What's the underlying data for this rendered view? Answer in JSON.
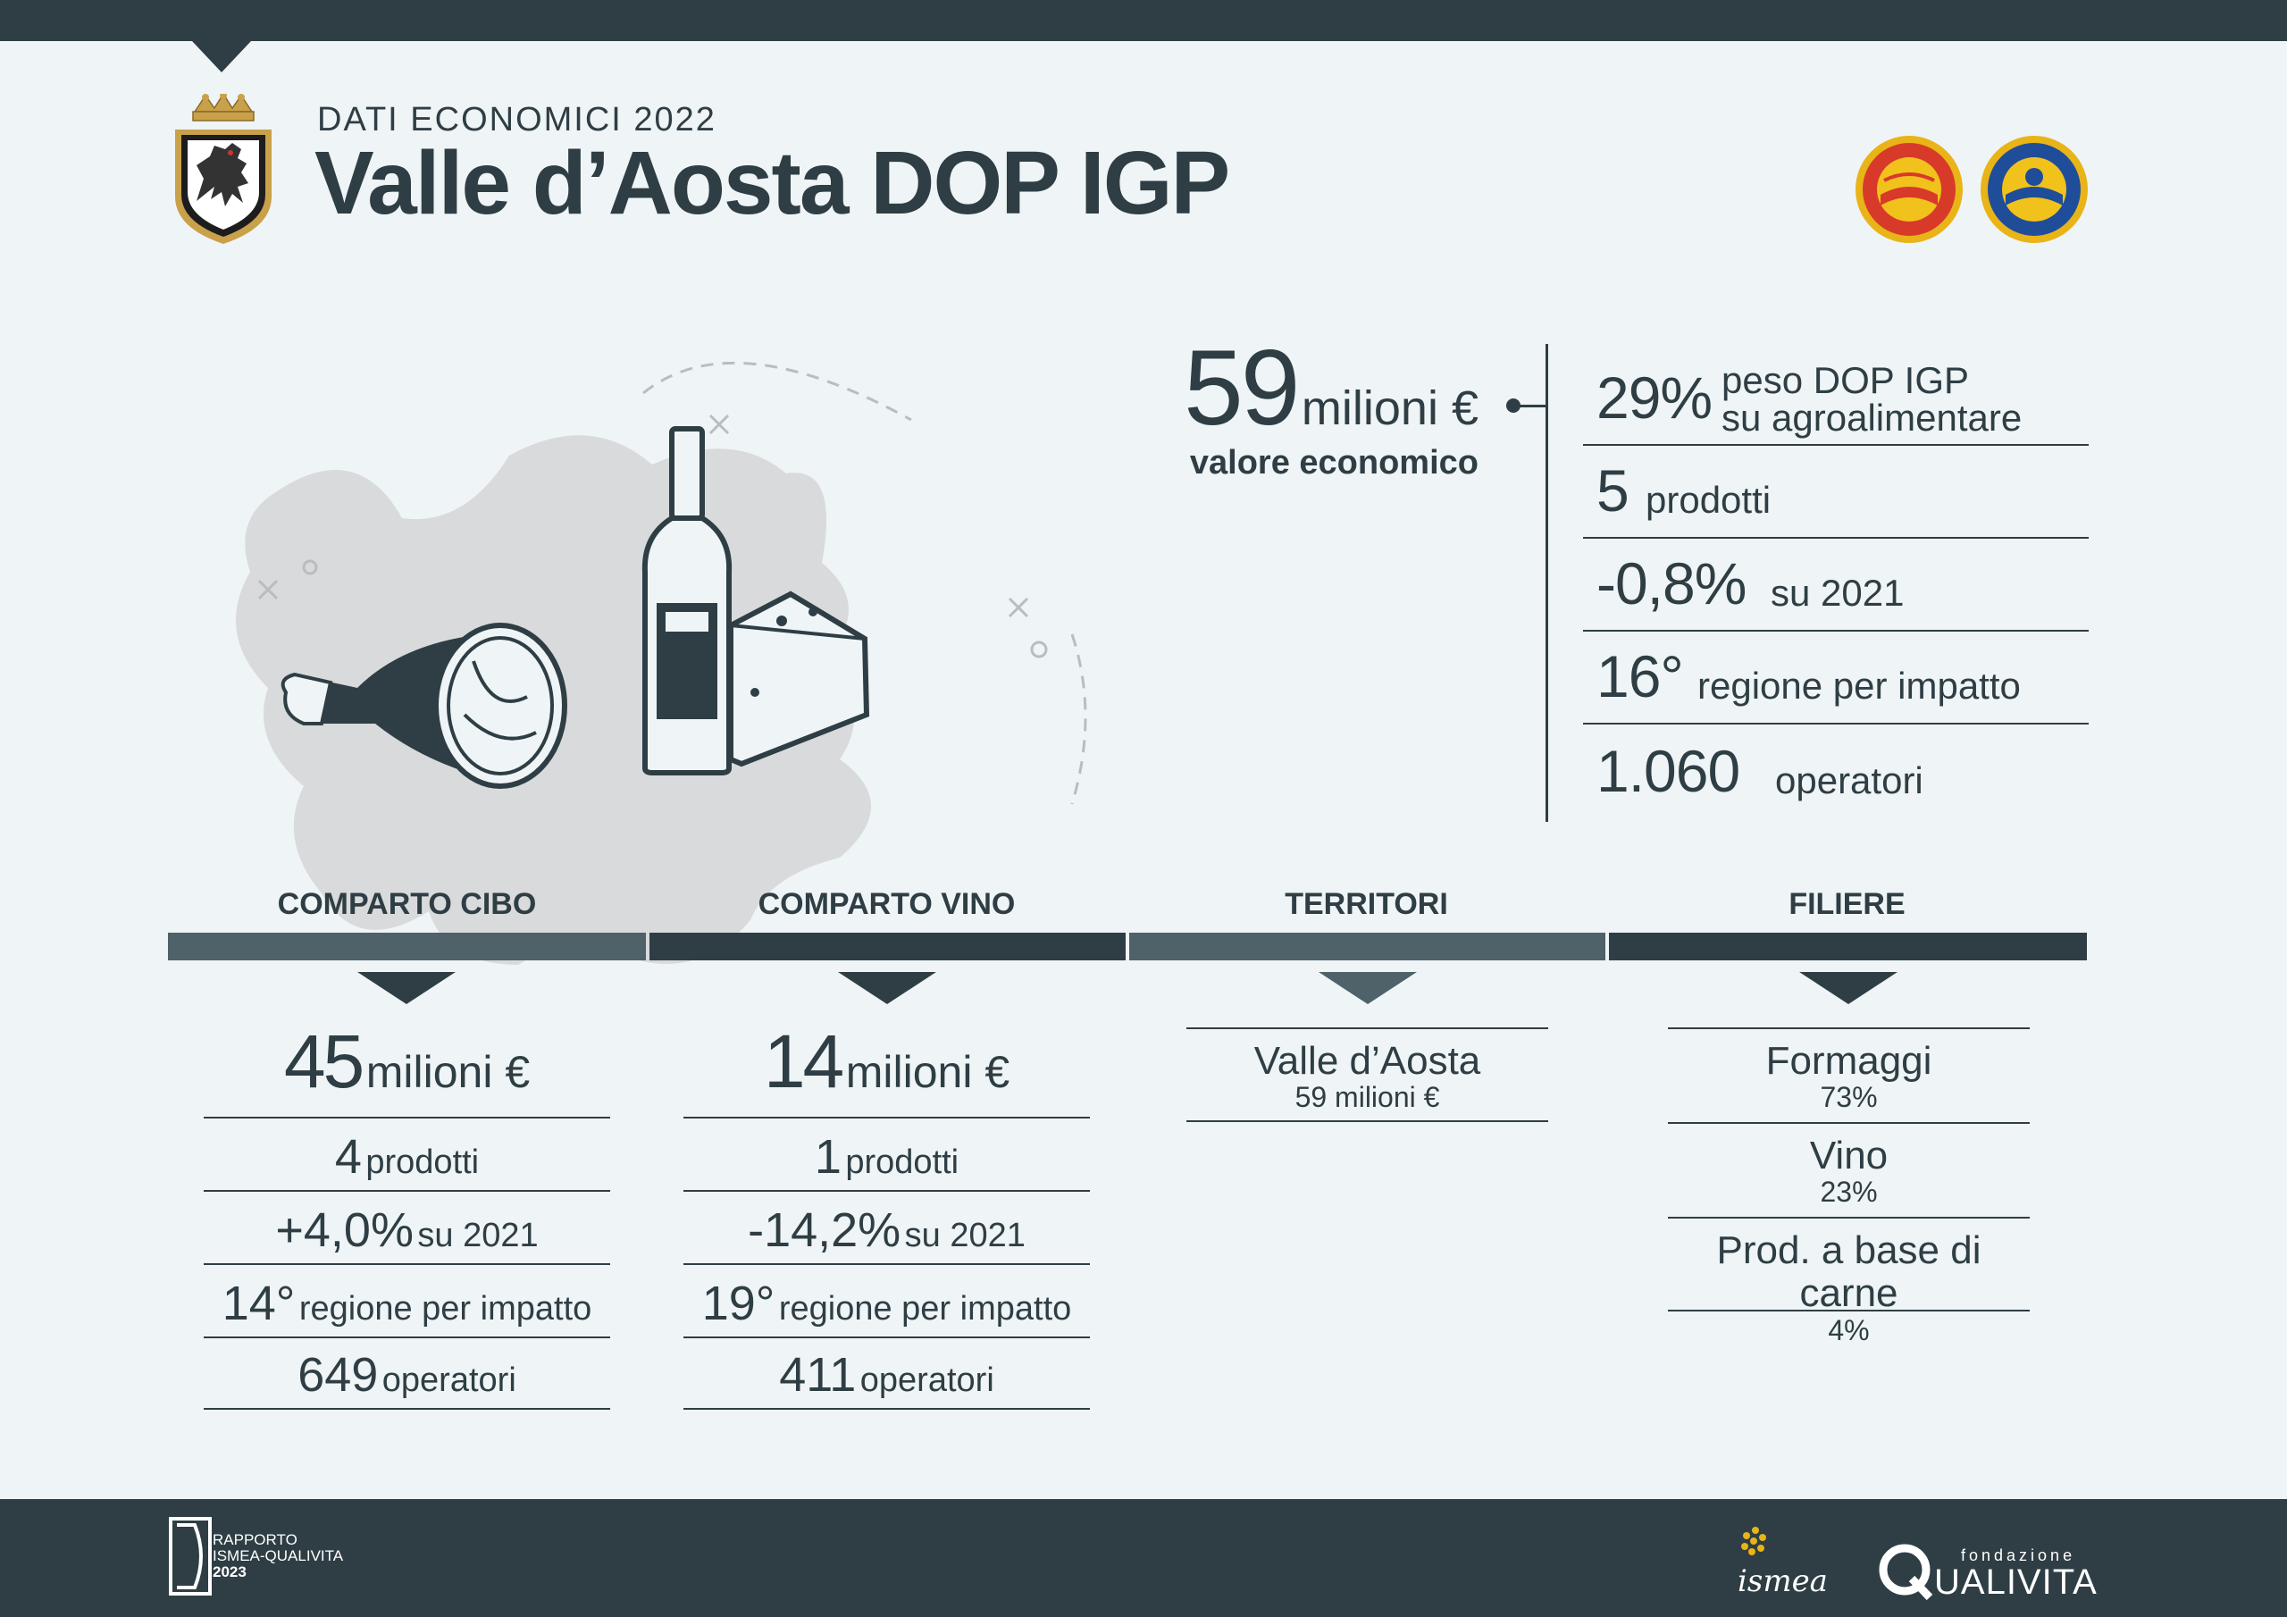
{
  "header": {
    "kicker": "DATI ECONOMICI 2022",
    "title": "Valle d’Aosta DOP IGP",
    "seals": [
      "dop-seal-icon",
      "igp-seal-icon"
    ]
  },
  "summary": {
    "value": "59",
    "unit": "milioni €",
    "label": "valore economico",
    "kpis": [
      {
        "value": "29%",
        "label_line1": "peso DOP IGP",
        "label_line2": "su agroalimentare"
      },
      {
        "value": "5",
        "label": "prodotti"
      },
      {
        "value": "-0,8%",
        "label": "su 2021"
      },
      {
        "value": "16°",
        "label": "regione per impatto"
      },
      {
        "value": "1.060",
        "label": "operatori"
      }
    ]
  },
  "sections": [
    {
      "title": "COMPARTO CIBO"
    },
    {
      "title": "COMPARTO VINO"
    },
    {
      "title": "TERRITORI"
    },
    {
      "title": "FILIERE"
    }
  ],
  "cibo": {
    "value": "45",
    "unit": "milioni €",
    "rows": [
      {
        "value": "4",
        "label": "prodotti"
      },
      {
        "value": "+4,0%",
        "label": "su 2021"
      },
      {
        "value": "14°",
        "label": "regione per impatto"
      },
      {
        "value": "649",
        "label": "operatori"
      }
    ]
  },
  "vino": {
    "value": "14",
    "unit": "milioni €",
    "rows": [
      {
        "value": "1",
        "label": "prodotti"
      },
      {
        "value": "-14,2%",
        "label": "su 2021"
      },
      {
        "value": "19°",
        "label": "regione per impatto"
      },
      {
        "value": "411",
        "label": "operatori"
      }
    ]
  },
  "territori": [
    {
      "name": "Valle d’Aosta",
      "sub": "59 milioni €"
    }
  ],
  "filiere": [
    {
      "name": "Formaggi",
      "sub": "73%"
    },
    {
      "name": "Vino",
      "sub": "23%"
    },
    {
      "name": "Prod. a base di carne",
      "sub": "4%"
    }
  ],
  "footer": {
    "report_line1": "RAPPORTO",
    "report_line2": "ISMEA-QUALIVITA",
    "report_line3": "2023",
    "ismea": "ismea",
    "qualivita_small": "fondazione",
    "qualivita": "UALIVITA"
  },
  "colors": {
    "dark": "#2e3e44",
    "mid": "#4f6169",
    "background": "#eff4f6",
    "map": "#d8dadc"
  }
}
